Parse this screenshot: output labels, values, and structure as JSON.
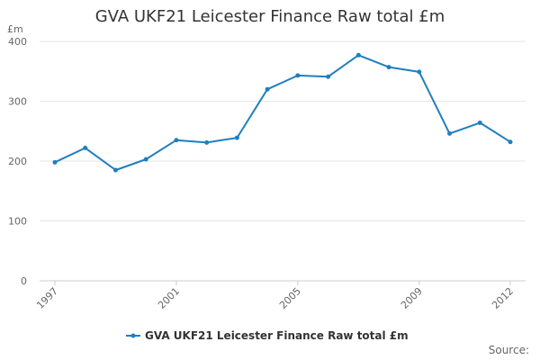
{
  "chart_data": {
    "type": "line",
    "title": "GVA UKF21 Leicester Finance Raw total £m",
    "ylabel": "£m",
    "xlabel": "",
    "x": [
      1997,
      1998,
      1999,
      2000,
      2001,
      2002,
      2003,
      2004,
      2005,
      2006,
      2007,
      2008,
      2009,
      2010,
      2011,
      2012
    ],
    "x_tick_labels": [
      "1997",
      "2001",
      "2005",
      "2009",
      "2012"
    ],
    "x_tick_values": [
      1997,
      2001,
      2005,
      2009,
      2012
    ],
    "y_ticks": [
      0,
      100,
      200,
      300,
      400
    ],
    "ylim": [
      0,
      400
    ],
    "xlim": [
      1997,
      2012
    ],
    "grid": true,
    "legend_position": "bottom",
    "series": [
      {
        "name": "GVA UKF21 Leicester Finance Raw total £m",
        "color": "#1f7fbf",
        "values": [
          198,
          222,
          185,
          203,
          235,
          231,
          239,
          320,
          343,
          341,
          377,
          357,
          349,
          246,
          264,
          232
        ]
      }
    ]
  },
  "source_label": "Source:"
}
